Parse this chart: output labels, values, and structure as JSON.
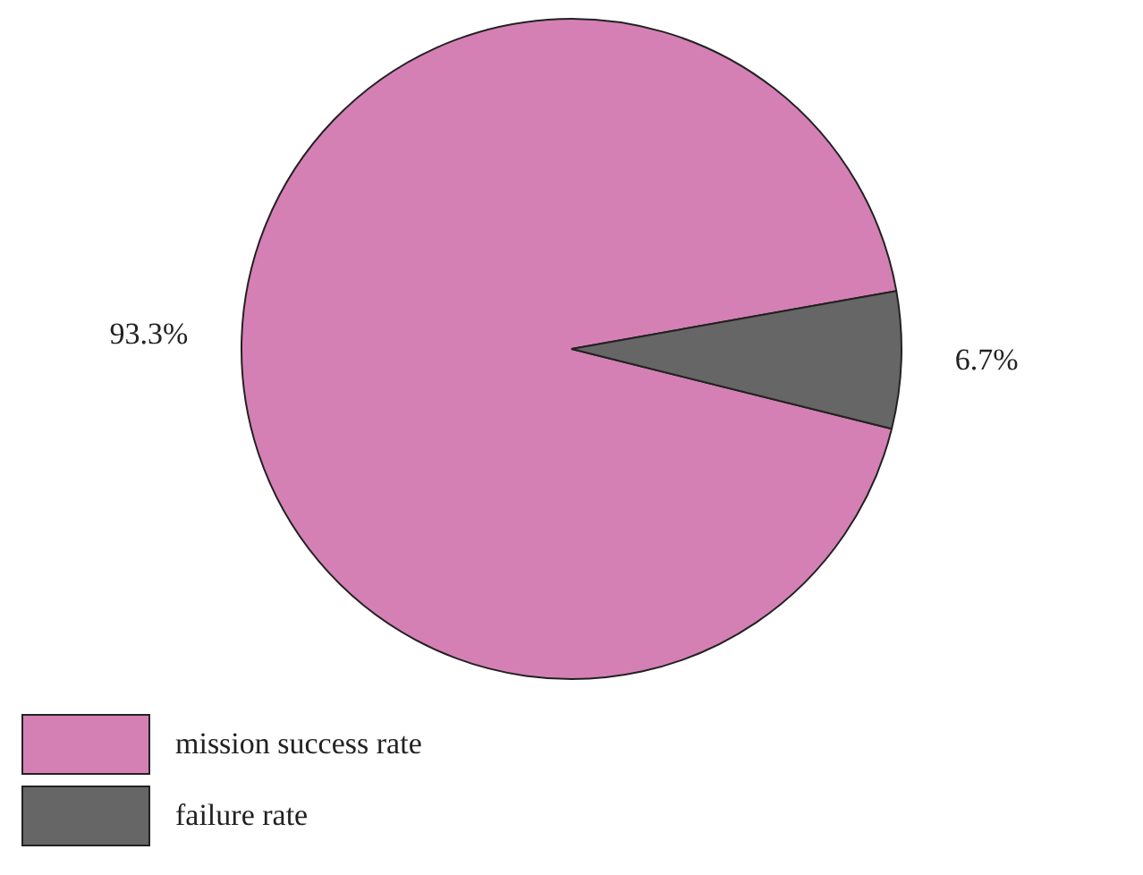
{
  "chart_data": {
    "type": "pie",
    "categories": [
      "mission success rate",
      "failure rate"
    ],
    "values": [
      93.3,
      6.7
    ],
    "colors": [
      "#d580b4",
      "#666666"
    ],
    "value_labels": [
      "93.3%",
      "6.7%"
    ],
    "legend": "bottom left"
  }
}
